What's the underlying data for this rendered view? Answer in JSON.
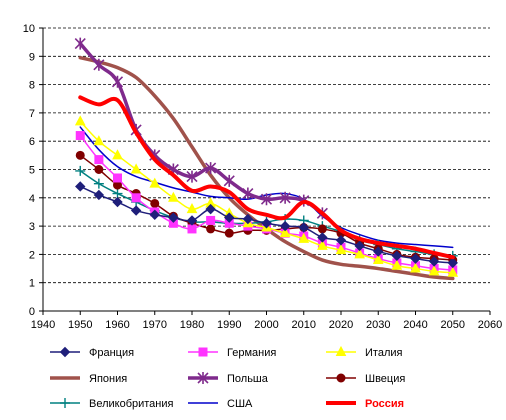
{
  "chart_data": {
    "type": "line",
    "title": "",
    "xlabel": "",
    "ylabel": "",
    "xlim": [
      1940,
      2060
    ],
    "ylim": [
      0,
      10
    ],
    "x_ticks": [
      1940,
      1950,
      1960,
      1970,
      1980,
      1990,
      2000,
      2010,
      2020,
      2030,
      2040,
      2050,
      2060
    ],
    "y_ticks": [
      0,
      1,
      2,
      3,
      4,
      5,
      6,
      7,
      8,
      9,
      10
    ],
    "grid": "horizontal dashed",
    "legend_position": "bottom",
    "series": [
      {
        "name": "Франция",
        "color": "#1f1f7a",
        "marker": "diamond",
        "line_width": 1.5,
        "bold_label": false,
        "x": [
          1950,
          1955,
          1960,
          1965,
          1970,
          1975,
          1980,
          1985,
          1990,
          1995,
          2000,
          2005,
          2010,
          2015,
          2020,
          2025,
          2030,
          2035,
          2040,
          2045,
          2050
        ],
        "y": [
          4.4,
          4.1,
          3.85,
          3.55,
          3.4,
          3.3,
          3.2,
          3.6,
          3.3,
          3.25,
          3.1,
          3.0,
          2.95,
          2.6,
          2.5,
          2.3,
          2.1,
          1.95,
          1.85,
          1.75,
          1.7
        ]
      },
      {
        "name": "Германия",
        "color": "#ff33ff",
        "marker": "square",
        "line_width": 1.5,
        "bold_label": false,
        "x": [
          1950,
          1955,
          1960,
          1965,
          1970,
          1975,
          1980,
          1985,
          1990,
          1995,
          2000,
          2005,
          2010,
          2015,
          2020,
          2025,
          2030,
          2035,
          2040,
          2045,
          2050
        ],
        "y": [
          6.2,
          5.35,
          4.7,
          4.0,
          3.5,
          3.1,
          2.9,
          3.2,
          3.1,
          3.0,
          2.9,
          2.75,
          2.65,
          2.4,
          2.25,
          2.05,
          1.85,
          1.7,
          1.6,
          1.5,
          1.45
        ]
      },
      {
        "name": "Италия",
        "color": "#ffff00",
        "marker": "triangle",
        "line_width": 1.5,
        "bold_label": false,
        "x": [
          1950,
          1955,
          1960,
          1965,
          1970,
          1975,
          1980,
          1985,
          1990,
          1995,
          2000,
          2005,
          2010,
          2015,
          2020,
          2025,
          2030,
          2035,
          2040,
          2045,
          2050
        ],
        "y": [
          6.7,
          6.0,
          5.5,
          5.0,
          4.5,
          4.0,
          3.6,
          3.8,
          3.45,
          3.1,
          2.95,
          2.75,
          2.55,
          2.3,
          2.15,
          2.0,
          1.8,
          1.6,
          1.5,
          1.4,
          1.35
        ]
      },
      {
        "name": "Япония",
        "color": "#a0524b",
        "marker": "none",
        "line_width": 3.5,
        "bold_label": false,
        "x": [
          1950,
          1955,
          1960,
          1965,
          1970,
          1975,
          1980,
          1985,
          1990,
          1995,
          2000,
          2005,
          2010,
          2015,
          2020,
          2025,
          2030,
          2035,
          2040,
          2045,
          2050
        ],
        "y": [
          8.95,
          8.8,
          8.6,
          8.25,
          7.6,
          6.8,
          5.8,
          4.8,
          4.0,
          3.4,
          2.9,
          2.45,
          2.1,
          1.8,
          1.65,
          1.58,
          1.5,
          1.4,
          1.3,
          1.2,
          1.15
        ]
      },
      {
        "name": "Польша",
        "color": "#7f2a8c",
        "marker": "star",
        "line_width": 3.5,
        "bold_label": false,
        "x": [
          1950,
          1955,
          1960,
          1965,
          1970,
          1975,
          1980,
          1985,
          1990,
          1995,
          2000,
          2005,
          2010,
          2015
        ],
        "y": [
          9.45,
          8.7,
          8.1,
          6.4,
          5.5,
          5.0,
          4.75,
          5.05,
          4.6,
          4.15,
          3.95,
          4.0,
          3.9,
          3.45
        ]
      },
      {
        "name": "Швеция",
        "color": "#800000",
        "marker": "circle",
        "line_width": 1.5,
        "bold_label": false,
        "x": [
          1950,
          1955,
          1960,
          1965,
          1970,
          1975,
          1980,
          1985,
          1990,
          1995,
          2000,
          2005,
          2010,
          2015,
          2020,
          2025,
          2030,
          2035,
          2040,
          2045,
          2050
        ],
        "y": [
          5.5,
          5.0,
          4.45,
          4.15,
          3.8,
          3.35,
          3.1,
          2.9,
          2.75,
          2.85,
          2.85,
          2.9,
          2.95,
          2.9,
          2.75,
          2.4,
          2.2,
          2.0,
          1.9,
          1.85,
          1.8
        ]
      },
      {
        "name": "Великобритания",
        "color": "#008080",
        "marker": "plus",
        "line_width": 1.5,
        "bold_label": false,
        "x": [
          1950,
          1955,
          1960,
          1965,
          1970,
          1975,
          1980,
          1985,
          1990,
          1995,
          2000,
          2005,
          2010,
          2015,
          2020,
          2025,
          2030,
          2035,
          2040,
          2045,
          2050
        ],
        "y": [
          4.95,
          4.5,
          4.15,
          3.85,
          3.55,
          3.3,
          3.15,
          3.15,
          3.1,
          3.1,
          3.15,
          3.25,
          3.2,
          3.0,
          2.8,
          2.5,
          2.35,
          2.2,
          2.1,
          2.0,
          1.95
        ]
      },
      {
        "name": "США",
        "color": "#0000cc",
        "marker": "none",
        "line_width": 1.5,
        "bold_label": false,
        "x": [
          1950,
          1955,
          1960,
          1965,
          1970,
          1975,
          1980,
          1985,
          1990,
          1995,
          2000,
          2005,
          2010,
          2015,
          2020,
          2025,
          2030,
          2035,
          2040,
          2045,
          2050
        ],
        "y": [
          6.5,
          5.7,
          5.1,
          4.75,
          4.55,
          4.35,
          4.2,
          4.05,
          4.0,
          3.95,
          4.1,
          4.15,
          3.95,
          3.35,
          2.95,
          2.7,
          2.5,
          2.4,
          2.35,
          2.3,
          2.25
        ]
      },
      {
        "name": "Россия",
        "color": "#ff0000",
        "marker": "none",
        "line_width": 4,
        "bold_label": true,
        "x": [
          1950,
          1955,
          1960,
          1965,
          1970,
          1975,
          1980,
          1985,
          1990,
          1995,
          2000,
          2005,
          2010,
          2015,
          2020,
          2025,
          2030,
          2035,
          2040,
          2045,
          2050
        ],
        "y": [
          7.55,
          7.3,
          7.45,
          6.3,
          5.35,
          4.8,
          4.25,
          4.4,
          4.2,
          3.6,
          3.4,
          3.3,
          3.85,
          3.45,
          2.85,
          2.55,
          2.4,
          2.3,
          2.2,
          2.05,
          1.9
        ]
      }
    ]
  }
}
